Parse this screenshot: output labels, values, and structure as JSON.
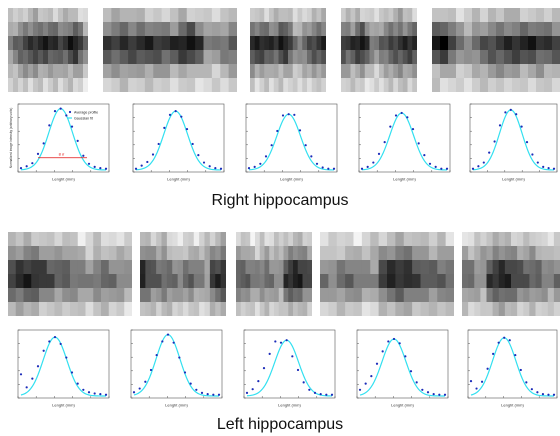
{
  "captions": {
    "right": "Right hippocampus",
    "left": "Left hippocampus"
  },
  "plot_text": {
    "xlabel": "Lenght (mm)",
    "ylabel": "Normalized image intensity (arbitrary units)",
    "legend_avg": "Average profile",
    "legend_fit": "Gaussian fit",
    "fwhm_label": "8 σ"
  },
  "colors": {
    "curve": "#33e0f0",
    "points": "#1b2bb8",
    "fwhm_line": "#e01010"
  },
  "profiles": {
    "right": [
      [
        0.03,
        0.06,
        0.11,
        0.26,
        0.43,
        0.72,
        0.95,
        0.99,
        0.88,
        0.7,
        0.47,
        0.23,
        0.1,
        0.05,
        0.03,
        0.02
      ],
      [
        0.02,
        0.07,
        0.13,
        0.25,
        0.42,
        0.68,
        0.89,
        0.95,
        0.86,
        0.66,
        0.42,
        0.24,
        0.12,
        0.06,
        0.03,
        0.02
      ],
      [
        0.03,
        0.05,
        0.1,
        0.22,
        0.4,
        0.63,
        0.88,
        0.9,
        0.89,
        0.64,
        0.4,
        0.22,
        0.1,
        0.04,
        0.02,
        0.02
      ],
      [
        0.02,
        0.05,
        0.12,
        0.26,
        0.45,
        0.7,
        0.88,
        0.92,
        0.85,
        0.66,
        0.43,
        0.24,
        0.1,
        0.05,
        0.02,
        0.02
      ],
      [
        0.02,
        0.06,
        0.12,
        0.28,
        0.46,
        0.72,
        0.93,
        0.97,
        0.9,
        0.7,
        0.45,
        0.25,
        0.12,
        0.05,
        0.03,
        0.02
      ]
    ],
    "left": [
      [
        0.35,
        0.14,
        0.28,
        0.48,
        0.73,
        0.88,
        0.95,
        0.84,
        0.62,
        0.38,
        0.2,
        0.1,
        0.06,
        0.04,
        0.03,
        0.02
      ],
      [
        0.06,
        0.12,
        0.23,
        0.42,
        0.66,
        0.88,
        0.99,
        0.86,
        0.62,
        0.38,
        0.2,
        0.1,
        0.05,
        0.03,
        0.02,
        0.02
      ],
      [
        0.05,
        0.11,
        0.24,
        0.45,
        0.68,
        0.88,
        0.86,
        0.9,
        0.64,
        0.42,
        0.22,
        0.1,
        0.05,
        0.03,
        0.02,
        0.02
      ],
      [
        0.1,
        0.2,
        0.32,
        0.52,
        0.72,
        0.88,
        0.92,
        0.85,
        0.64,
        0.4,
        0.22,
        0.1,
        0.06,
        0.03,
        0.02,
        0.02
      ],
      [
        0.24,
        0.12,
        0.23,
        0.44,
        0.68,
        0.86,
        0.94,
        0.9,
        0.66,
        0.42,
        0.22,
        0.11,
        0.06,
        0.03,
        0.02,
        0.02
      ]
    ]
  },
  "intensity_rows": {
    "right": [
      [
        0.82,
        0.78,
        0.8,
        0.74,
        0.7,
        0.66,
        0.72,
        0.76,
        0.79,
        0.81,
        0.77,
        0.74,
        0.7,
        0.76,
        0.8,
        0.84
      ],
      [
        0.7,
        0.62,
        0.55,
        0.52,
        0.5,
        0.48,
        0.5,
        0.46,
        0.44,
        0.48,
        0.52,
        0.55,
        0.42,
        0.35,
        0.5,
        0.66
      ],
      [
        0.48,
        0.4,
        0.32,
        0.26,
        0.22,
        0.18,
        0.16,
        0.15,
        0.14,
        0.17,
        0.2,
        0.18,
        0.1,
        0.08,
        0.22,
        0.45
      ],
      [
        0.6,
        0.52,
        0.44,
        0.38,
        0.36,
        0.34,
        0.32,
        0.3,
        0.33,
        0.36,
        0.4,
        0.38,
        0.3,
        0.26,
        0.4,
        0.58
      ],
      [
        0.78,
        0.72,
        0.66,
        0.62,
        0.6,
        0.58,
        0.62,
        0.66,
        0.64,
        0.6,
        0.66,
        0.7,
        0.68,
        0.64,
        0.7,
        0.76
      ],
      [
        0.84,
        0.82,
        0.8,
        0.78,
        0.8,
        0.76,
        0.78,
        0.82,
        0.8,
        0.78,
        0.82,
        0.8,
        0.78,
        0.82,
        0.84,
        0.86
      ]
    ],
    "left": [
      [
        0.78,
        0.74,
        0.7,
        0.72,
        0.76,
        0.8,
        0.78,
        0.74,
        0.82,
        0.9,
        0.86,
        0.8,
        0.84,
        0.88,
        0.82,
        0.78
      ],
      [
        0.6,
        0.54,
        0.5,
        0.52,
        0.56,
        0.62,
        0.64,
        0.6,
        0.66,
        0.74,
        0.8,
        0.72,
        0.68,
        0.72,
        0.7,
        0.66
      ],
      [
        0.3,
        0.24,
        0.2,
        0.22,
        0.28,
        0.36,
        0.4,
        0.44,
        0.46,
        0.52,
        0.56,
        0.5,
        0.46,
        0.52,
        0.58,
        0.62
      ],
      [
        0.2,
        0.16,
        0.14,
        0.16,
        0.24,
        0.3,
        0.36,
        0.38,
        0.4,
        0.44,
        0.5,
        0.42,
        0.4,
        0.44,
        0.5,
        0.56
      ],
      [
        0.48,
        0.44,
        0.4,
        0.44,
        0.5,
        0.56,
        0.58,
        0.54,
        0.58,
        0.6,
        0.66,
        0.6,
        0.58,
        0.62,
        0.66,
        0.7
      ],
      [
        0.74,
        0.7,
        0.68,
        0.7,
        0.74,
        0.76,
        0.78,
        0.74,
        0.76,
        0.8,
        0.82,
        0.78,
        0.76,
        0.8,
        0.82,
        0.84
      ]
    ]
  }
}
